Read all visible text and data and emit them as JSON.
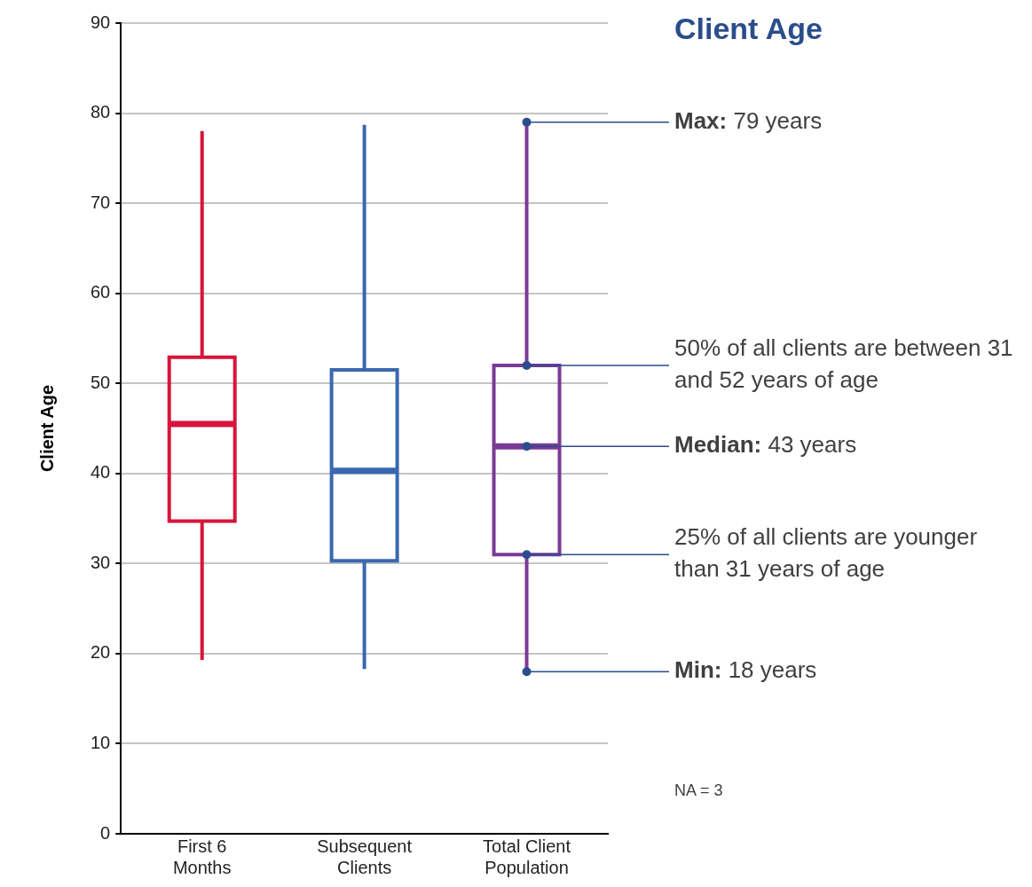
{
  "chart_data": {
    "type": "box",
    "title": "Client Age",
    "ylabel": "Client Age",
    "categories": [
      "First 6 Months",
      "Subsequent Clients",
      "Total Client Population"
    ],
    "colors": [
      "#d7153a",
      "#3a68b0",
      "#7b3a96"
    ],
    "boxes": [
      {
        "low": 19.3,
        "q1": 34.7,
        "median": 45.5,
        "q3": 52.9,
        "high": 78
      },
      {
        "low": 18.3,
        "q1": 30.3,
        "median": 40.3,
        "q3": 51.5,
        "high": 78.7
      },
      {
        "low": 18,
        "q1": 31,
        "median": 43,
        "q3": 52,
        "high": 79
      }
    ],
    "ylim": [
      0,
      90
    ],
    "yticks": [
      0,
      10,
      20,
      30,
      40,
      50,
      60,
      70,
      80,
      90
    ],
    "grid": "y",
    "legend": false,
    "annotations": [
      {
        "text": "Max: 79 years",
        "x": "Total Client Population",
        "y": 79
      },
      {
        "text": "50% of all clients are between 31 and 52 years of age",
        "x": "Total Client Population",
        "y": 52
      },
      {
        "text": "Median: 43 years",
        "x": "Total Client Population",
        "y": 43
      },
      {
        "text": "25% of all clients are younger than 31 years of age",
        "x": "Total Client Population",
        "y": 31
      },
      {
        "text": "Min: 18 years",
        "x": "Total Client Population",
        "y": 18
      },
      "NA = 3"
    ]
  }
}
